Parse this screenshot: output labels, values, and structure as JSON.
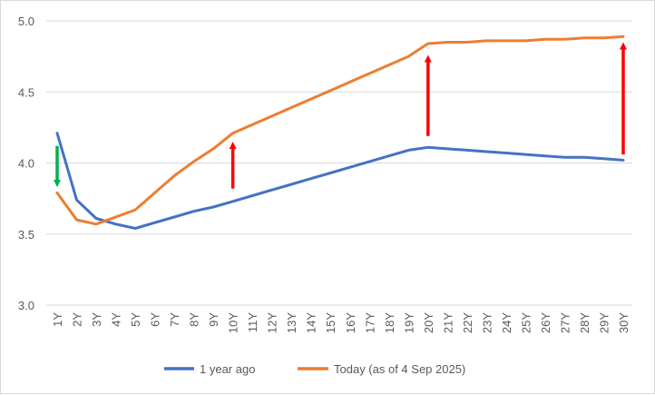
{
  "chart_data": {
    "type": "line",
    "title": "",
    "xlabel": "",
    "ylabel": "",
    "categories": [
      "1Y",
      "2Y",
      "3Y",
      "4Y",
      "5Y",
      "6Y",
      "7Y",
      "8Y",
      "9Y",
      "10Y",
      "11Y",
      "12Y",
      "13Y",
      "14Y",
      "15Y",
      "16Y",
      "17Y",
      "18Y",
      "19Y",
      "20Y",
      "21Y",
      "22Y",
      "23Y",
      "24Y",
      "25Y",
      "26Y",
      "27Y",
      "28Y",
      "29Y",
      "30Y"
    ],
    "ylim": [
      3.0,
      5.0
    ],
    "yticks": [
      "3.0",
      "3.5",
      "4.0",
      "4.5",
      "5.0"
    ],
    "grid": true,
    "legend_position": "bottom",
    "series": [
      {
        "name": "1 year ago",
        "color": "#4472c4",
        "values": [
          4.21,
          3.74,
          3.61,
          3.57,
          3.54,
          3.58,
          3.62,
          3.66,
          3.69,
          3.73,
          3.77,
          3.81,
          3.85,
          3.89,
          3.93,
          3.97,
          4.01,
          4.05,
          4.09,
          4.11,
          4.1,
          4.09,
          4.08,
          4.07,
          4.06,
          4.05,
          4.04,
          4.04,
          4.03,
          4.02
        ]
      },
      {
        "name": "Today (as of 4 Sep 2025)",
        "color": "#ed7d31",
        "values": [
          3.79,
          3.6,
          3.57,
          3.62,
          3.67,
          3.79,
          3.91,
          4.01,
          4.1,
          4.21,
          4.27,
          4.33,
          4.39,
          4.45,
          4.51,
          4.57,
          4.63,
          4.69,
          4.75,
          4.84,
          4.85,
          4.85,
          4.86,
          4.86,
          4.86,
          4.87,
          4.87,
          4.88,
          4.88,
          4.89
        ]
      }
    ],
    "annotations": [
      {
        "type": "arrow",
        "direction": "down",
        "color": "#00b050",
        "category": "1Y",
        "from": 4.12,
        "to": 3.83
      },
      {
        "type": "arrow",
        "direction": "up",
        "color": "#ff0000",
        "category": "10Y",
        "from": 3.82,
        "to": 4.15
      },
      {
        "type": "arrow",
        "direction": "up",
        "color": "#ff0000",
        "category": "20Y",
        "from": 4.19,
        "to": 4.76
      },
      {
        "type": "arrow",
        "direction": "up",
        "color": "#ff0000",
        "category": "30Y",
        "from": 4.06,
        "to": 4.85
      }
    ]
  }
}
